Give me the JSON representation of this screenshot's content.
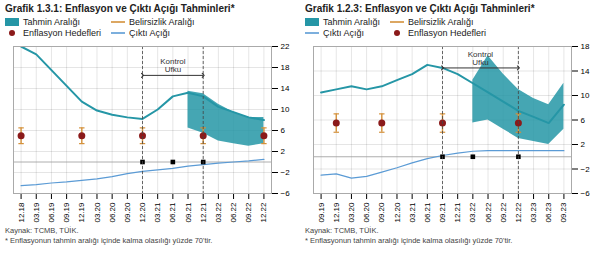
{
  "chart_data": [
    {
      "type": "line",
      "title": "Grafik 1.3.1: Enflasyon ve Çıktı Açığı Tahminleri*",
      "categories": [
        "12.18",
        "03.19",
        "06.19",
        "09.19",
        "12.19",
        "03.20",
        "06.20",
        "09.20",
        "12.20",
        "03.21",
        "06.21",
        "09.21",
        "12.21",
        "03.22",
        "06.22",
        "09.22",
        "12.22"
      ],
      "ylim": [
        -6,
        22
      ],
      "yticks": [
        -6,
        -2,
        2,
        6,
        10,
        14,
        18,
        22
      ],
      "grid": true,
      "hlines": [
        0
      ],
      "series": [
        {
          "name": "Tahmin Aralığı",
          "type": "area",
          "color": "#2596a6",
          "lower": [
            null,
            null,
            null,
            null,
            null,
            null,
            null,
            null,
            null,
            null,
            null,
            6.5,
            5.5,
            4.0,
            3.5,
            3.0,
            3.5
          ],
          "upper": [
            null,
            null,
            null,
            null,
            null,
            null,
            null,
            null,
            null,
            null,
            null,
            13.5,
            13.0,
            11.0,
            9.5,
            8.5,
            8.5
          ]
        },
        {
          "name": "Belirsizlik Aralığı",
          "type": "errorbar",
          "color": "#d4913a",
          "lower": [
            3.5,
            null,
            null,
            null,
            3.5,
            null,
            null,
            null,
            3.5,
            null,
            null,
            null,
            3.5,
            null,
            null,
            null,
            3.5
          ],
          "upper": [
            6.5,
            null,
            null,
            null,
            6.5,
            null,
            null,
            null,
            6.5,
            null,
            null,
            null,
            6.5,
            null,
            null,
            null,
            6.5
          ]
        },
        {
          "name": "Enflasyon Hedefleri",
          "type": "scatter",
          "marker": "circle",
          "color": "#8b1a1a",
          "values": [
            5,
            null,
            null,
            null,
            5,
            null,
            null,
            null,
            5,
            null,
            null,
            null,
            5,
            null,
            null,
            null,
            5
          ]
        },
        {
          "name": "Çıktı Açığı",
          "type": "line",
          "color": "#5b9bd5",
          "values": [
            -4.5,
            -4.3,
            -4.0,
            -3.8,
            -3.5,
            -3.2,
            -2.8,
            -2.2,
            -1.8,
            -1.5,
            -1.2,
            -0.8,
            -0.5,
            -0.2,
            0.0,
            0.2,
            0.5
          ]
        },
        {
          "type": "line",
          "color": "#2596a6",
          "values": [
            22,
            20.5,
            17.5,
            14.5,
            11.5,
            9.8,
            9.0,
            8.5,
            8.2,
            10.0,
            12.5,
            13.2,
            12.5,
            10.5,
            9.5,
            8.5,
            8.0
          ]
        },
        {
          "type": "scatter",
          "marker": "square",
          "color": "black",
          "values": [
            null,
            null,
            null,
            null,
            null,
            null,
            null,
            null,
            0,
            null,
            0,
            null,
            0,
            null,
            null,
            null,
            null
          ]
        }
      ],
      "annotations": [
        {
          "text": "Kontrol\nUfku",
          "from": "12.20",
          "to": "12.21",
          "y": 16.5
        }
      ],
      "footnotes": [
        "Kaynak: TCMB, TÜİK.",
        "* Enflasyonun tahmin aralığı içinde kalma olasılığı yüzde 70'tir."
      ]
    },
    {
      "type": "line",
      "title": "Grafik 1.2.3: Enflasyon ve Çıktı Açığı Tahminleri*",
      "categories": [
        "09.19",
        "12.19",
        "03.20",
        "06.20",
        "09.20",
        "12.20",
        "03.21",
        "06.21",
        "09.21",
        "12.21",
        "03.22",
        "06.22",
        "09.22",
        "12.22",
        "03.23",
        "06.23",
        "09.23"
      ],
      "ylim": [
        -6,
        18
      ],
      "yticks": [
        -6,
        -2,
        2,
        6,
        10,
        14,
        18
      ],
      "grid": true,
      "hlines": [
        0
      ],
      "series": [
        {
          "name": "Tahmin Aralığı",
          "type": "area",
          "color": "#2596a6",
          "lower": [
            null,
            null,
            null,
            null,
            null,
            null,
            null,
            null,
            null,
            null,
            5.5,
            6.0,
            4.5,
            3.0,
            2.5,
            2.0,
            4.5
          ],
          "upper": [
            null,
            null,
            null,
            null,
            null,
            null,
            null,
            null,
            null,
            null,
            12.5,
            16.5,
            13.5,
            11.0,
            9.5,
            8.5,
            12.0
          ]
        },
        {
          "name": "Belirsizlik Aralığı",
          "type": "errorbar",
          "color": "#d4913a",
          "lower": [
            null,
            4.0,
            null,
            null,
            4.0,
            null,
            null,
            null,
            4.0,
            null,
            null,
            null,
            null,
            4.0,
            null,
            null,
            null
          ],
          "upper": [
            null,
            7.0,
            null,
            null,
            7.0,
            null,
            null,
            null,
            7.0,
            null,
            null,
            null,
            null,
            7.0,
            null,
            null,
            null
          ]
        },
        {
          "name": "Çıktı Açığı",
          "type": "line",
          "color": "#5b9bd5",
          "values": [
            -3.0,
            -2.8,
            -3.5,
            -3.2,
            -2.5,
            -1.8,
            -1.0,
            -0.3,
            0.2,
            0.6,
            0.9,
            1.0,
            1.0,
            1.0,
            1.0,
            1.0,
            1.0
          ]
        },
        {
          "name": "Enflasyon Hedefleri",
          "type": "scatter",
          "marker": "circle",
          "color": "#8b1a1a",
          "values": [
            null,
            5.5,
            null,
            null,
            5.5,
            null,
            null,
            null,
            5.5,
            null,
            null,
            null,
            null,
            5.5,
            null,
            null,
            null
          ]
        },
        {
          "type": "line",
          "color": "#2596a6",
          "values": [
            10.5,
            11.0,
            11.5,
            11.0,
            11.5,
            12.5,
            13.5,
            15.0,
            14.5,
            13.5,
            12.0,
            10.5,
            9.0,
            7.5,
            6.5,
            5.5,
            8.5
          ]
        },
        {
          "type": "scatter",
          "marker": "square",
          "color": "black",
          "values": [
            null,
            null,
            null,
            null,
            null,
            null,
            null,
            null,
            0,
            null,
            0,
            null,
            null,
            0,
            null,
            null,
            null
          ]
        }
      ],
      "annotations": [
        {
          "text": "Kontrol\nUfku",
          "from": "09.21",
          "to": "12.22",
          "y": 14.5
        }
      ],
      "footnotes": [
        "Kaynak: TCMB, TÜİK.",
        "* Enflasyonun tahmin aralığı içinde kalma olasılığı yüzde 70'tir."
      ]
    }
  ]
}
